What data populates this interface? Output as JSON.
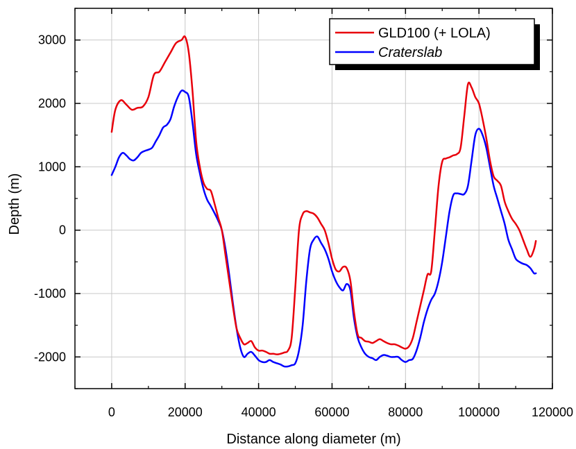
{
  "chart_data": {
    "type": "line",
    "title": "",
    "xlabel": "Distance along diameter (m)",
    "ylabel": "Depth (m)",
    "xlim": [
      -10000,
      120000
    ],
    "ylim": [
      -2500,
      3500
    ],
    "xticks": [
      0,
      20000,
      40000,
      60000,
      80000,
      100000,
      120000
    ],
    "yticks": [
      -2000,
      -1000,
      0,
      1000,
      2000,
      3000
    ],
    "xtick_labels": [
      "0",
      "20000",
      "40000",
      "60000",
      "80000",
      "100000",
      "120000"
    ],
    "ytick_labels": [
      "-2000",
      "-1000",
      "0",
      "1000",
      "2000",
      "3000"
    ],
    "grid": true,
    "legend_position": "top-right",
    "series": [
      {
        "name": "GLD100 (+ LOLA)",
        "color": "#e8000b",
        "italic": false,
        "x": [
          0,
          1000,
          2500,
          4000,
          5500,
          7000,
          8500,
          10000,
          11500,
          13000,
          14500,
          16000,
          17500,
          19000,
          20000,
          21000,
          22000,
          23000,
          24000,
          25000,
          26000,
          27000,
          28000,
          29000,
          30000,
          31000,
          32000,
          33000,
          34000,
          35000,
          36000,
          37000,
          38000,
          39000,
          40000,
          41000,
          42000,
          43000,
          44000,
          45000,
          46000,
          47000,
          48000,
          49000,
          50000,
          51000,
          52000,
          53000,
          54000,
          55000,
          56000,
          57000,
          58000,
          59000,
          60000,
          61000,
          62000,
          63000,
          64000,
          65000,
          66000,
          67000,
          68000,
          69000,
          70000,
          71000,
          72000,
          73000,
          74000,
          75000,
          76000,
          77000,
          78000,
          79000,
          80000,
          81000,
          82000,
          83000,
          84000,
          85000,
          86000,
          87000,
          88000,
          89000,
          90000,
          91000,
          92000,
          93000,
          94000,
          95000,
          96000,
          97000,
          98000,
          99000,
          100000,
          101000,
          102000,
          103000,
          104000,
          105000,
          106000,
          107000,
          108000,
          109000,
          110000,
          111000,
          112000,
          113000,
          114000,
          115000,
          115500
        ],
        "y": [
          1550,
          1900,
          2050,
          1980,
          1900,
          1930,
          1950,
          2100,
          2450,
          2500,
          2650,
          2800,
          2950,
          3000,
          3050,
          2800,
          2200,
          1400,
          1000,
          750,
          650,
          620,
          420,
          200,
          0,
          -400,
          -800,
          -1200,
          -1550,
          -1700,
          -1800,
          -1780,
          -1750,
          -1850,
          -1900,
          -1900,
          -1920,
          -1950,
          -1950,
          -1960,
          -1950,
          -1930,
          -1900,
          -1700,
          -900,
          0,
          250,
          300,
          280,
          260,
          200,
          100,
          0,
          -200,
          -450,
          -620,
          -650,
          -580,
          -600,
          -800,
          -1300,
          -1650,
          -1700,
          -1750,
          -1760,
          -1780,
          -1750,
          -1720,
          -1750,
          -1780,
          -1800,
          -1800,
          -1820,
          -1850,
          -1870,
          -1830,
          -1700,
          -1450,
          -1200,
          -950,
          -700,
          -650,
          0,
          700,
          1080,
          1130,
          1150,
          1180,
          1200,
          1300,
          1800,
          2300,
          2250,
          2100,
          2000,
          1750,
          1450,
          1100,
          850,
          780,
          700,
          450,
          300,
          180,
          100,
          0,
          -150,
          -300,
          -420,
          -300,
          -170
        ]
      },
      {
        "name": "Craterslab",
        "color": "#0000ff",
        "italic": true,
        "x": [
          0,
          1000,
          2000,
          3000,
          4000,
          5000,
          6000,
          7000,
          8000,
          9000,
          10000,
          11000,
          12000,
          13000,
          14000,
          15000,
          16000,
          17000,
          18000,
          19000,
          20000,
          21000,
          22000,
          23000,
          24000,
          25000,
          26000,
          27000,
          28000,
          29000,
          30000,
          31000,
          32000,
          33000,
          34000,
          35000,
          36000,
          37000,
          38000,
          39000,
          40000,
          41000,
          42000,
          43000,
          44000,
          45000,
          46000,
          47000,
          48000,
          49000,
          50000,
          51000,
          52000,
          53000,
          54000,
          55000,
          56000,
          57000,
          58000,
          59000,
          60000,
          61000,
          62000,
          63000,
          64000,
          65000,
          66000,
          67000,
          68000,
          69000,
          70000,
          71000,
          72000,
          73000,
          74000,
          75000,
          76000,
          77000,
          78000,
          79000,
          80000,
          81000,
          82000,
          83000,
          84000,
          85000,
          86000,
          87000,
          88000,
          89000,
          90000,
          91000,
          92000,
          93000,
          94000,
          95000,
          96000,
          97000,
          98000,
          99000,
          100000,
          101000,
          102000,
          103000,
          104000,
          105000,
          106000,
          107000,
          108000,
          109000,
          110000,
          111000,
          112000,
          113000,
          114000,
          115000,
          115500
        ],
        "y": [
          870,
          1000,
          1150,
          1220,
          1180,
          1120,
          1100,
          1150,
          1220,
          1250,
          1270,
          1300,
          1400,
          1500,
          1620,
          1660,
          1750,
          1950,
          2100,
          2200,
          2180,
          2100,
          1700,
          1200,
          900,
          650,
          480,
          380,
          270,
          150,
          0,
          -300,
          -700,
          -1150,
          -1550,
          -1850,
          -2000,
          -1950,
          -1920,
          -1980,
          -2050,
          -2080,
          -2080,
          -2050,
          -2080,
          -2100,
          -2120,
          -2150,
          -2150,
          -2130,
          -2100,
          -1900,
          -1500,
          -800,
          -300,
          -150,
          -100,
          -200,
          -300,
          -450,
          -650,
          -800,
          -900,
          -950,
          -850,
          -950,
          -1400,
          -1700,
          -1850,
          -1950,
          -2000,
          -2020,
          -2050,
          -2000,
          -1970,
          -1980,
          -2000,
          -2000,
          -2000,
          -2050,
          -2080,
          -2050,
          -2030,
          -1900,
          -1700,
          -1450,
          -1250,
          -1100,
          -1000,
          -800,
          -500,
          -100,
          300,
          550,
          580,
          570,
          570,
          700,
          1100,
          1500,
          1600,
          1500,
          1300,
          1000,
          700,
          500,
          300,
          100,
          -150,
          -300,
          -450,
          -500,
          -530,
          -550,
          -600,
          -680,
          -680
        ]
      }
    ]
  }
}
